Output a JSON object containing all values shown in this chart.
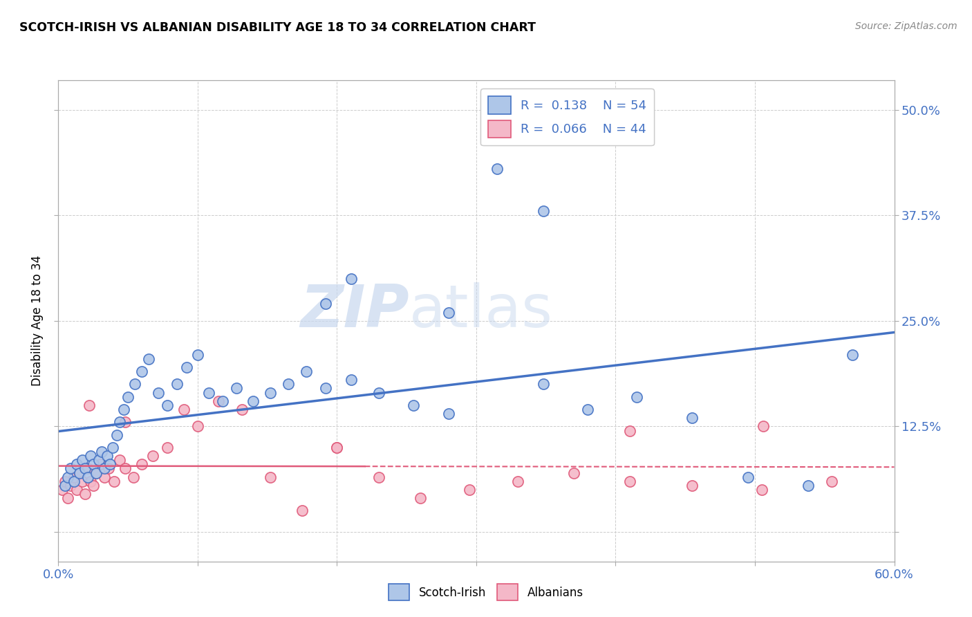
{
  "title": "SCOTCH-IRISH VS ALBANIAN DISABILITY AGE 18 TO 34 CORRELATION CHART",
  "source": "Source: ZipAtlas.com",
  "ylabel": "Disability Age 18 to 34",
  "xlim": [
    0.0,
    0.6
  ],
  "ylim": [
    -0.035,
    0.535
  ],
  "xticks": [
    0.0,
    0.1,
    0.2,
    0.3,
    0.4,
    0.5,
    0.6
  ],
  "xticklabels": [
    "0.0%",
    "",
    "",
    "",
    "",
    "",
    "60.0%"
  ],
  "yticks": [
    0.0,
    0.125,
    0.25,
    0.375,
    0.5
  ],
  "yticklabels": [
    "",
    "12.5%",
    "25.0%",
    "37.5%",
    "50.0%"
  ],
  "legend_labels": [
    "Scotch-Irish",
    "Albanians"
  ],
  "legend_R": [
    "0.138",
    "0.066"
  ],
  "legend_N": [
    "54",
    "44"
  ],
  "scotch_irish_color": "#aec6e8",
  "albanian_color": "#f4b8c8",
  "scotch_irish_line_color": "#4472c4",
  "albanian_line_color": "#e05a7a",
  "watermark_zip": "ZIP",
  "watermark_atlas": "atlas",
  "scotch_irish_x": [
    0.005,
    0.007,
    0.009,
    0.011,
    0.013,
    0.015,
    0.017,
    0.019,
    0.021,
    0.023,
    0.025,
    0.027,
    0.029,
    0.031,
    0.033,
    0.035,
    0.037,
    0.039,
    0.042,
    0.044,
    0.047,
    0.05,
    0.055,
    0.06,
    0.065,
    0.072,
    0.078,
    0.085,
    0.092,
    0.1,
    0.108,
    0.118,
    0.128,
    0.14,
    0.152,
    0.165,
    0.178,
    0.192,
    0.21,
    0.23,
    0.255,
    0.28,
    0.315,
    0.348,
    0.38,
    0.415,
    0.455,
    0.495,
    0.538,
    0.192,
    0.21,
    0.28,
    0.348,
    0.57
  ],
  "scotch_irish_y": [
    0.055,
    0.065,
    0.075,
    0.06,
    0.08,
    0.07,
    0.085,
    0.075,
    0.065,
    0.09,
    0.08,
    0.07,
    0.085,
    0.095,
    0.075,
    0.09,
    0.08,
    0.1,
    0.115,
    0.13,
    0.145,
    0.16,
    0.175,
    0.19,
    0.205,
    0.165,
    0.15,
    0.175,
    0.195,
    0.21,
    0.165,
    0.155,
    0.17,
    0.155,
    0.165,
    0.175,
    0.19,
    0.17,
    0.18,
    0.165,
    0.15,
    0.14,
    0.43,
    0.38,
    0.145,
    0.16,
    0.135,
    0.065,
    0.055,
    0.27,
    0.3,
    0.26,
    0.175,
    0.21
  ],
  "albanian_x": [
    0.003,
    0.005,
    0.007,
    0.009,
    0.011,
    0.013,
    0.015,
    0.017,
    0.019,
    0.021,
    0.023,
    0.025,
    0.027,
    0.03,
    0.033,
    0.036,
    0.04,
    0.044,
    0.048,
    0.054,
    0.06,
    0.068,
    0.078,
    0.09,
    0.1,
    0.115,
    0.132,
    0.152,
    0.175,
    0.2,
    0.23,
    0.26,
    0.295,
    0.33,
    0.37,
    0.41,
    0.455,
    0.505,
    0.555,
    0.022,
    0.048,
    0.2,
    0.41,
    0.506
  ],
  "albanian_y": [
    0.05,
    0.06,
    0.04,
    0.055,
    0.065,
    0.05,
    0.07,
    0.06,
    0.045,
    0.075,
    0.06,
    0.055,
    0.07,
    0.08,
    0.065,
    0.075,
    0.06,
    0.085,
    0.075,
    0.065,
    0.08,
    0.09,
    0.1,
    0.145,
    0.125,
    0.155,
    0.145,
    0.065,
    0.025,
    0.1,
    0.065,
    0.04,
    0.05,
    0.06,
    0.07,
    0.06,
    0.055,
    0.05,
    0.06,
    0.15,
    0.13,
    0.1,
    0.12,
    0.125
  ]
}
